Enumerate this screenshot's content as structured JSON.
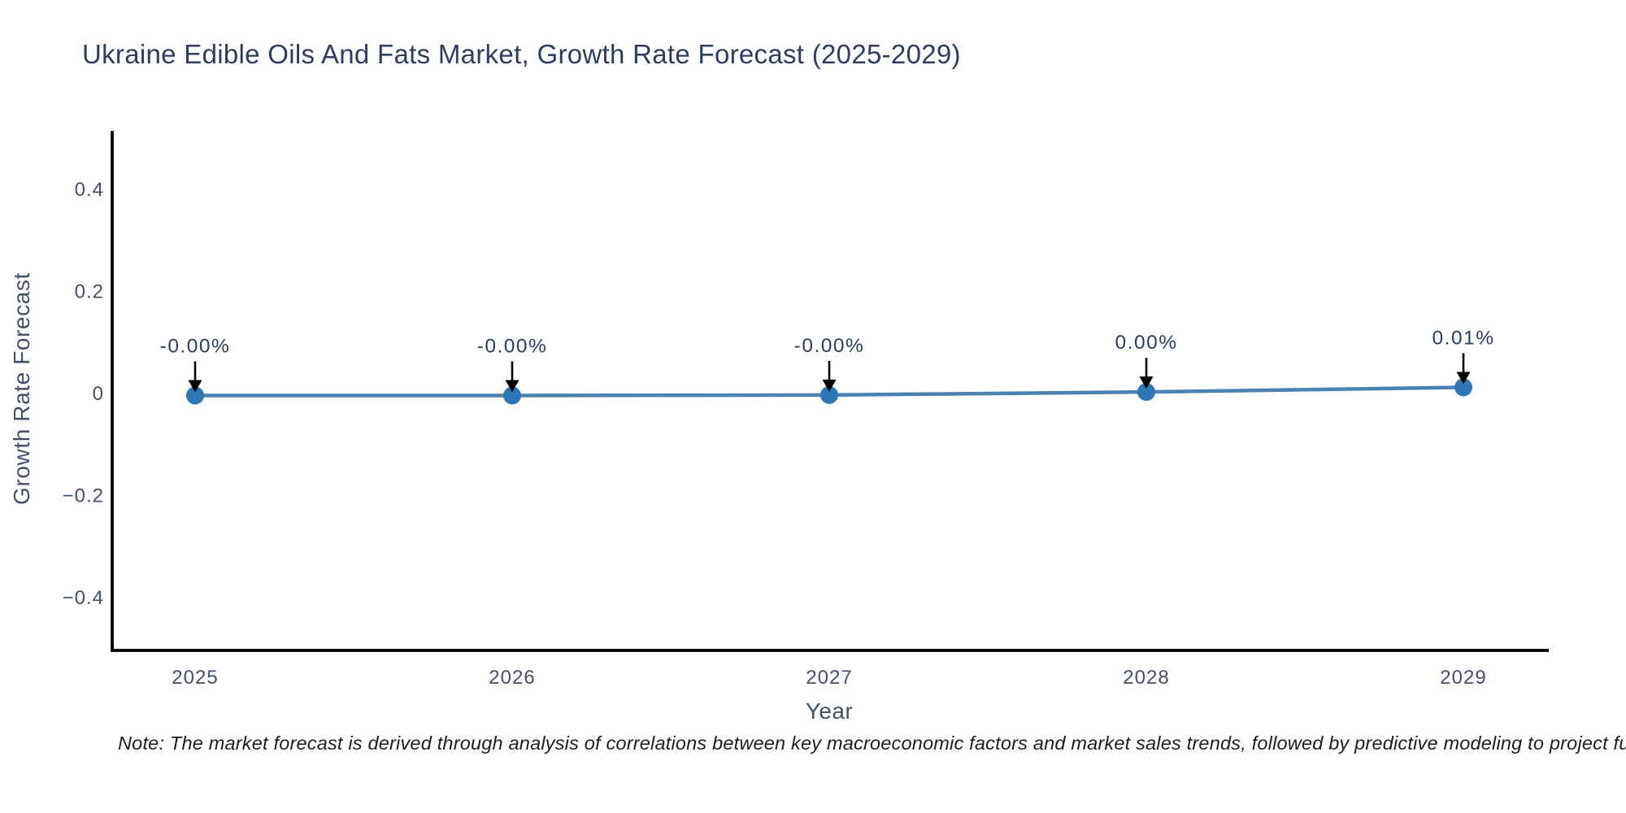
{
  "page": {
    "note": "Note: The market forecast is derived through analysis of correlations between key macroeconomic factors and market sales trends, followed by predictive modeling to project future sa"
  },
  "chart_data": {
    "type": "line",
    "title": "Ukraine Edible Oils And Fats Market, Growth Rate Forecast (2025-2029)",
    "xlabel": "Year",
    "ylabel": "Growth Rate Forecast",
    "categories": [
      "2025",
      "2026",
      "2027",
      "2028",
      "2029"
    ],
    "series": [
      {
        "name": "Growth Rate Forecast",
        "values": [
          -0.004,
          -0.004,
          -0.003,
          0.003,
          0.012
        ],
        "point_labels": [
          "-0.00%",
          "-0.00%",
          "-0.00%",
          "0.00%",
          "0.01%"
        ]
      }
    ],
    "y_ticks": [
      {
        "label": "0.4",
        "value": 0.4
      },
      {
        "label": "0.2",
        "value": 0.2
      },
      {
        "label": "0",
        "value": 0
      },
      {
        "label": "−0.2",
        "value": -0.2
      },
      {
        "label": "−0.4",
        "value": -0.4
      }
    ],
    "ylim": [
      -0.505,
      0.513
    ],
    "grid": false,
    "legend": "none",
    "annotation_style": "arrow-down-to-point",
    "colors": {
      "line": "#4d82b0",
      "marker": "#2f76b4",
      "arrow": "#000000",
      "axis": "#000000",
      "title": "#2f3e5e",
      "tick": "#42506a",
      "annotation": "#2a3f5f",
      "note": "#1a1d24"
    }
  }
}
